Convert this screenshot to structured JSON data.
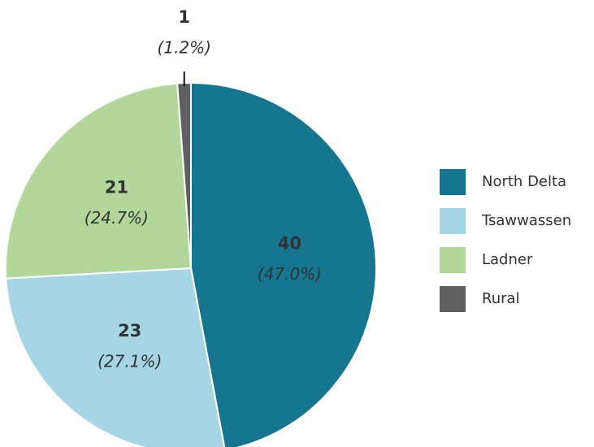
{
  "chart_data": {
    "type": "pie",
    "categories": [
      "North Delta",
      "Tsawwassen",
      "Ladner",
      "Rural"
    ],
    "values": [
      40,
      23,
      21,
      1
    ],
    "percent_labels": [
      "(47.0%)",
      "(27.1%)",
      "(24.7%)",
      "(1.2%)"
    ],
    "colors": [
      "#16758f",
      "#a6d5e5",
      "#b3d69b",
      "#5f5f5f"
    ],
    "legend": "right"
  }
}
